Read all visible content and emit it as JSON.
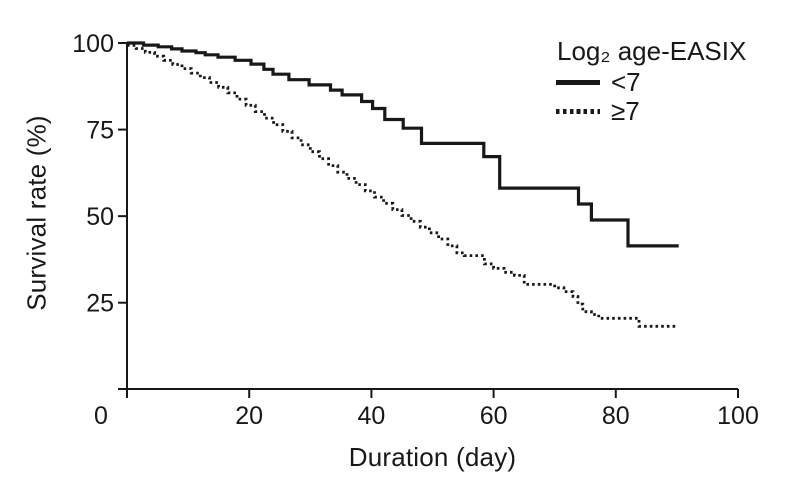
{
  "chart_data": {
    "type": "line",
    "subtype": "kaplan-meier-step",
    "title": "",
    "xlabel": "Duration (day)",
    "ylabel": "Survival rate (%)",
    "xlim": [
      0,
      100
    ],
    "ylim": [
      0,
      100
    ],
    "xticks": [
      0,
      20,
      40,
      60,
      80,
      100
    ],
    "yticks": [
      25,
      50,
      75,
      100
    ],
    "grid": false,
    "background_color": "#ffffff",
    "line_color": "#181818",
    "legend": {
      "title": "Log₂ age-EASIX",
      "position": "top-right",
      "entries": [
        {
          "label": "<7",
          "line_style": "solid"
        },
        {
          "label": "≥7",
          "line_style": "dotted"
        }
      ]
    },
    "series": [
      {
        "name": "<7",
        "line_style": "solid",
        "points": [
          [
            0,
            100
          ],
          [
            2.7,
            99.4
          ],
          [
            5.1,
            98.9
          ],
          [
            7.3,
            98.3
          ],
          [
            9,
            97.7
          ],
          [
            11.3,
            97.2
          ],
          [
            12.8,
            96.6
          ],
          [
            14.9,
            95.9
          ],
          [
            17.7,
            95
          ],
          [
            20.3,
            93.9
          ],
          [
            22.4,
            92.4
          ],
          [
            23.9,
            91
          ],
          [
            26.5,
            89.4
          ],
          [
            29.8,
            87.9
          ],
          [
            33.3,
            86.4
          ],
          [
            35.2,
            85
          ],
          [
            38.4,
            83.1
          ],
          [
            40.2,
            81.1
          ],
          [
            42.2,
            77.9
          ],
          [
            45.2,
            75.4
          ],
          [
            48.2,
            71
          ],
          [
            58.4,
            67.2
          ],
          [
            61,
            58.1
          ],
          [
            73.9,
            53.5
          ],
          [
            76,
            48.9
          ],
          [
            82,
            41.4
          ],
          [
            90.3,
            41.4
          ]
        ]
      },
      {
        "name": "≥7",
        "line_style": "dotted",
        "points": [
          [
            0,
            99.3
          ],
          [
            1.5,
            98.4
          ],
          [
            3,
            97.3
          ],
          [
            4.5,
            96.2
          ],
          [
            6,
            95
          ],
          [
            7.5,
            93.8
          ],
          [
            9,
            92.6
          ],
          [
            10.5,
            91.3
          ],
          [
            12,
            90
          ],
          [
            13.5,
            88.6
          ],
          [
            15,
            87.2
          ],
          [
            16.5,
            85.6
          ],
          [
            18,
            83.8
          ],
          [
            19.5,
            82
          ],
          [
            21,
            80.2
          ],
          [
            22.5,
            78.3
          ],
          [
            24,
            76.4
          ],
          [
            25.5,
            74.5
          ],
          [
            27,
            72.6
          ],
          [
            28.5,
            70.6
          ],
          [
            30,
            68.6
          ],
          [
            31.5,
            66.6
          ],
          [
            33,
            64.6
          ],
          [
            34.5,
            62.7
          ],
          [
            36,
            60.9
          ],
          [
            37.5,
            59.1
          ],
          [
            39,
            57.3
          ],
          [
            40.5,
            55.5
          ],
          [
            42,
            53.7
          ],
          [
            43.5,
            51.9
          ],
          [
            45,
            50.2
          ],
          [
            46.5,
            48.5
          ],
          [
            48,
            46.8
          ],
          [
            49.5,
            45.2
          ],
          [
            51,
            43.4
          ],
          [
            52.5,
            41.4
          ],
          [
            54,
            39.4
          ],
          [
            55.2,
            38.6
          ],
          [
            58.5,
            36.2
          ],
          [
            60,
            34.9
          ],
          [
            61.7,
            33.8
          ],
          [
            63.4,
            32.9
          ],
          [
            65,
            30.3
          ],
          [
            70,
            29.3
          ],
          [
            71.5,
            28.2
          ],
          [
            73,
            26.8
          ],
          [
            73.8,
            24.6
          ],
          [
            74.6,
            22.4
          ],
          [
            76,
            21.6
          ],
          [
            77.2,
            20.5
          ],
          [
            83.8,
            18.2
          ],
          [
            90,
            18.2
          ]
        ]
      }
    ]
  }
}
